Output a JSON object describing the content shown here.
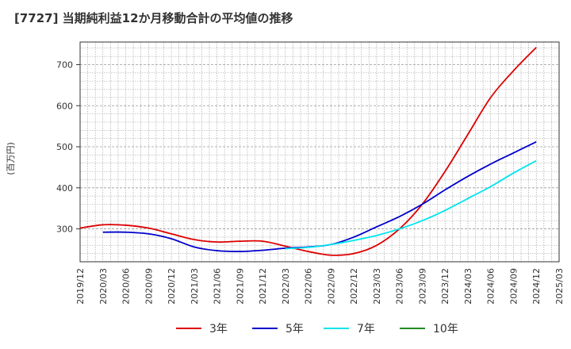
{
  "chart_data": {
    "type": "line",
    "title": "[7727]  当期純利益12か月移動合計の平均値の推移",
    "ylabel": "(百万円)",
    "xlabel": "",
    "ylim": [
      220,
      755
    ],
    "yticks": [
      300,
      400,
      500,
      600,
      700
    ],
    "x_ticks": [
      "2019/12",
      "2020/03",
      "2020/06",
      "2020/09",
      "2020/12",
      "2021/03",
      "2021/06",
      "2021/09",
      "2021/12",
      "2022/03",
      "2022/06",
      "2022/09",
      "2022/12",
      "2023/03",
      "2023/06",
      "2023/09",
      "2023/12",
      "2024/03",
      "2024/06",
      "2024/09",
      "2024/12",
      "2025/03"
    ],
    "grid": true,
    "legend_position": "bottom",
    "colors": {
      "grid": "#999999",
      "axis": "#333333"
    },
    "series": [
      {
        "name": "3年",
        "color": "#dd0000",
        "x": [
          "2019/12",
          "2020/03",
          "2020/06",
          "2020/09",
          "2020/12",
          "2021/03",
          "2021/06",
          "2021/09",
          "2021/12",
          "2022/03",
          "2022/06",
          "2022/09",
          "2022/12",
          "2023/03",
          "2023/06",
          "2023/09",
          "2023/12",
          "2024/03",
          "2024/06",
          "2024/09",
          "2024/12"
        ],
        "values": [
          302,
          310,
          309,
          302,
          288,
          274,
          268,
          270,
          270,
          258,
          245,
          236,
          240,
          260,
          300,
          360,
          440,
          530,
          620,
          685,
          742
        ]
      },
      {
        "name": "5年",
        "color": "#0000cc",
        "x": [
          "2020/03",
          "2020/06",
          "2020/09",
          "2020/12",
          "2021/03",
          "2021/06",
          "2021/09",
          "2021/12",
          "2022/03",
          "2022/06",
          "2022/09",
          "2022/12",
          "2023/03",
          "2023/06",
          "2023/09",
          "2023/12",
          "2024/03",
          "2024/06",
          "2024/09",
          "2024/12"
        ],
        "values": [
          292,
          292,
          288,
          276,
          256,
          247,
          245,
          248,
          253,
          256,
          262,
          280,
          305,
          330,
          360,
          395,
          428,
          458,
          485,
          512
        ]
      },
      {
        "name": "7年",
        "color": "#00e5ee",
        "x": [
          "2022/03",
          "2022/06",
          "2022/09",
          "2022/12",
          "2023/03",
          "2023/06",
          "2023/09",
          "2023/12",
          "2024/03",
          "2024/06",
          "2024/09",
          "2024/12"
        ],
        "values": [
          252,
          255,
          262,
          272,
          284,
          300,
          320,
          345,
          374,
          403,
          436,
          466
        ]
      },
      {
        "name": "10年",
        "color": "#228b22",
        "x": [],
        "values": []
      }
    ]
  }
}
